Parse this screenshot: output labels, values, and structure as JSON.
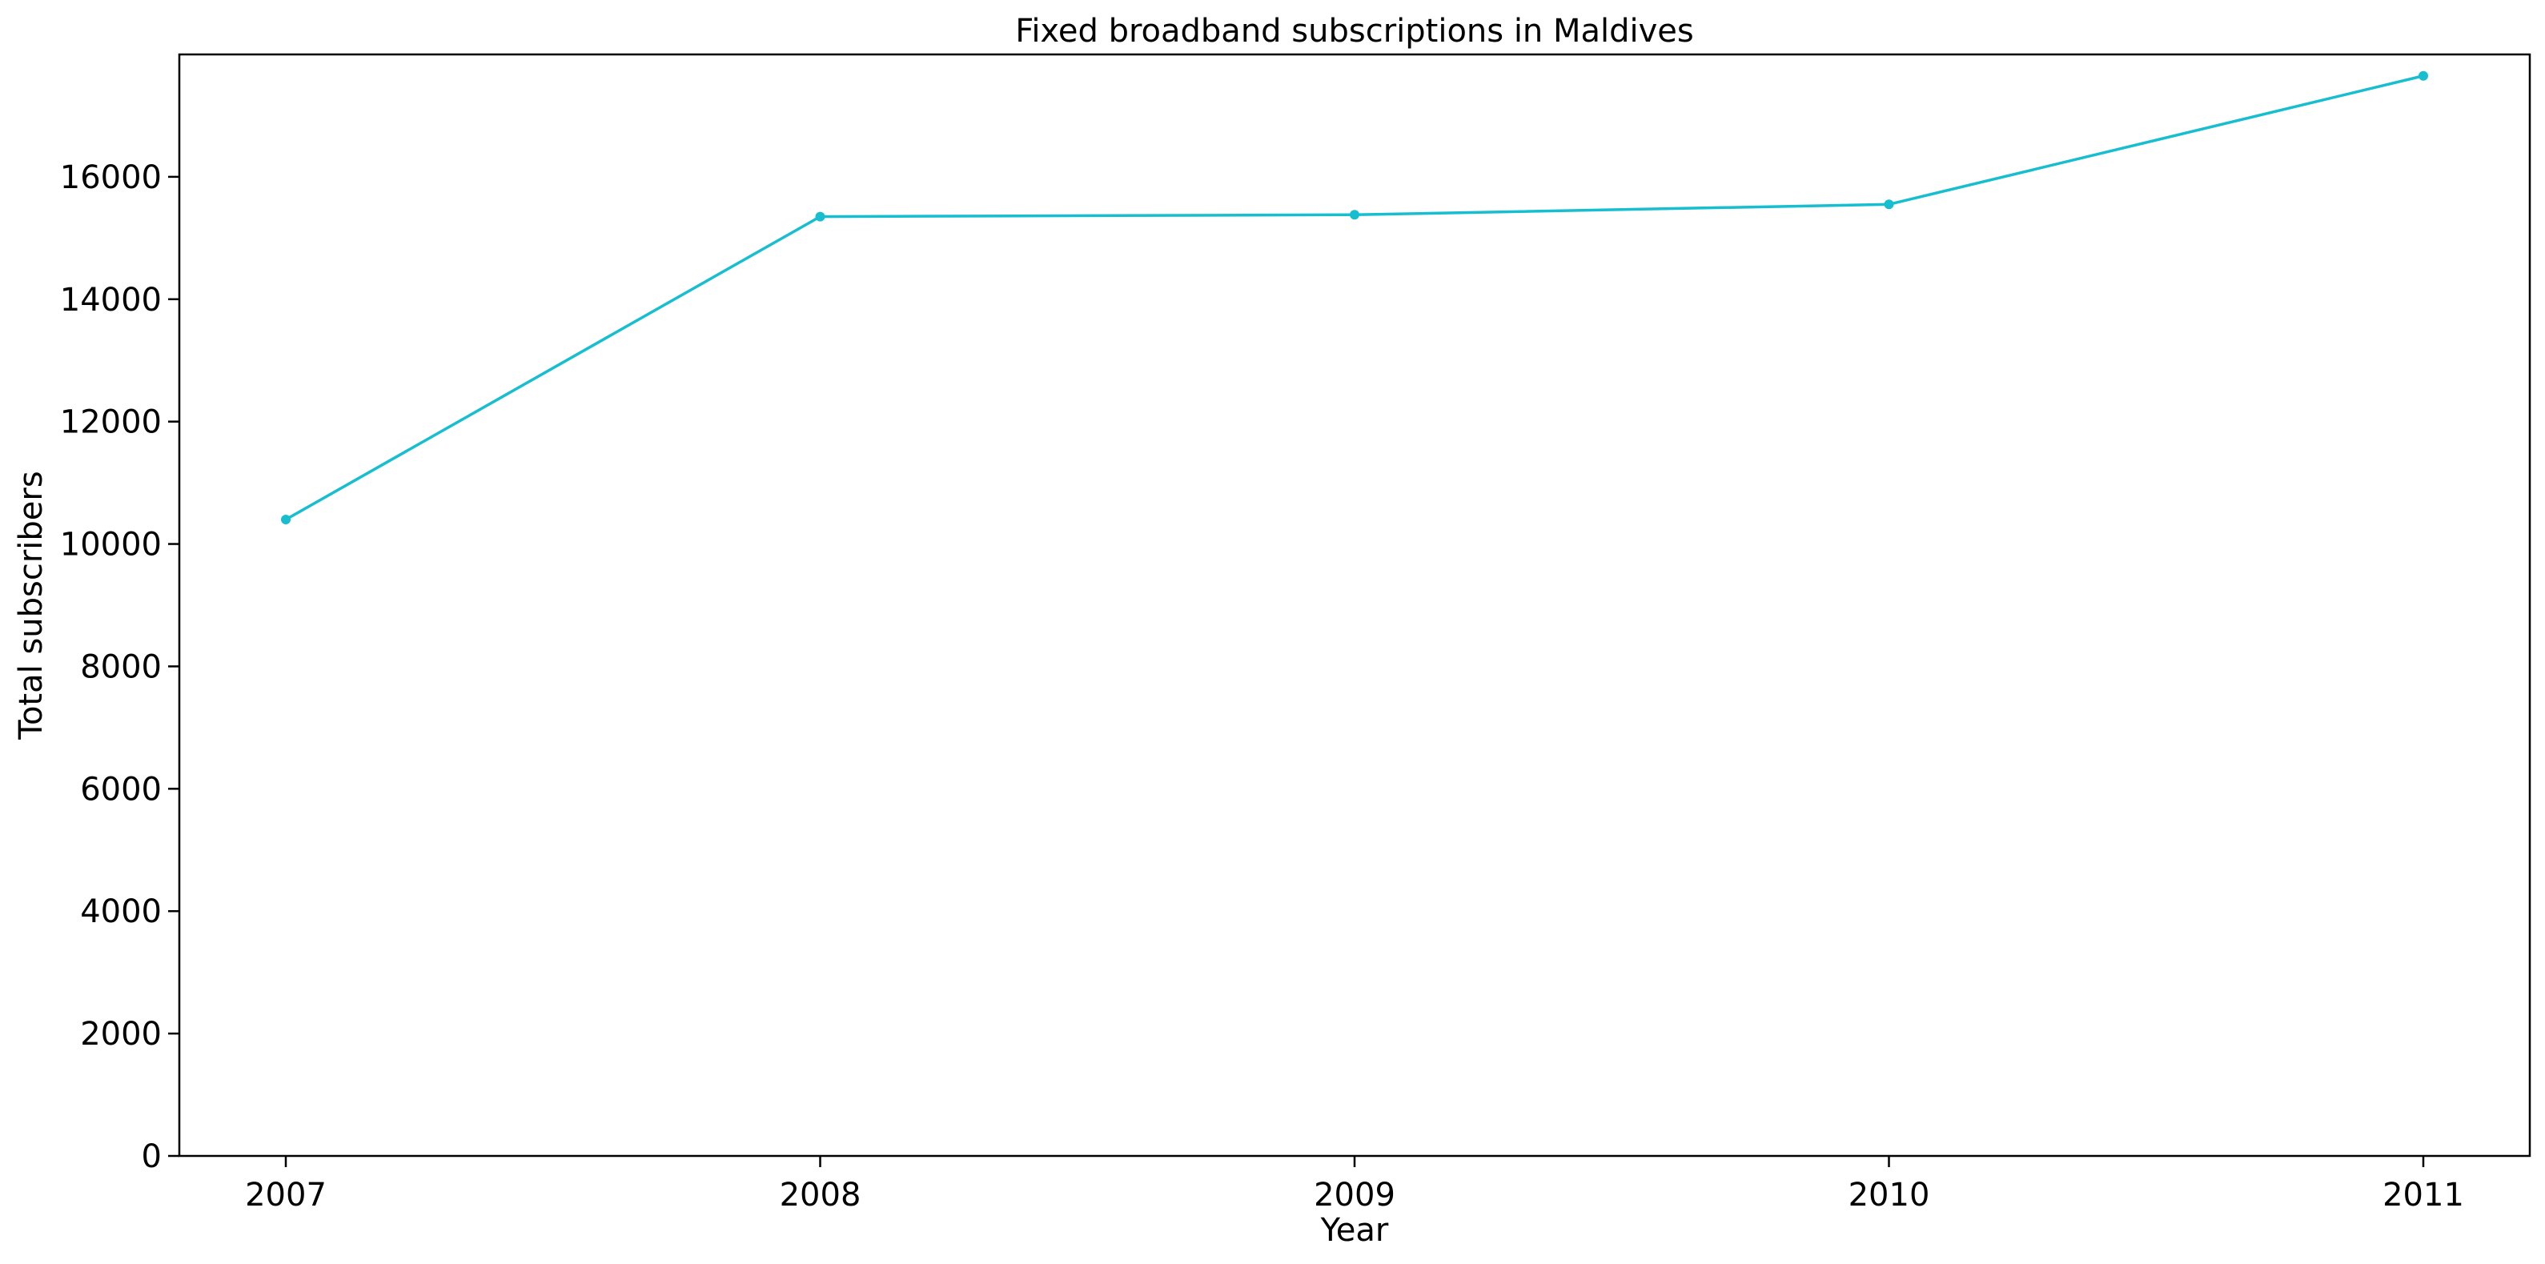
{
  "chart_data": {
    "type": "line",
    "title": "Fixed broadband subscriptions in Maldives",
    "xlabel": "Year",
    "ylabel": "Total subscribers",
    "x": [
      "2007",
      "2008",
      "2009",
      "2010",
      "2011"
    ],
    "series": [
      {
        "values": [
          10400,
          15350,
          15380,
          15550,
          17650
        ],
        "color": "#17becf"
      }
    ],
    "yticks": [
      0,
      2000,
      4000,
      6000,
      8000,
      10000,
      12000,
      14000,
      16000
    ],
    "ylim": [
      0,
      18000
    ],
    "grid": false,
    "legend": "none"
  }
}
